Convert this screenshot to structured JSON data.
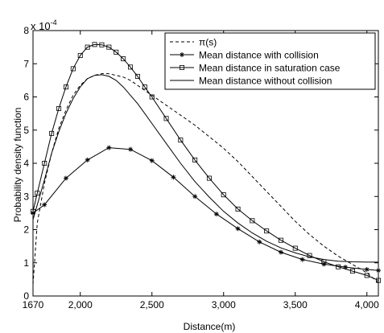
{
  "chart_data": {
    "type": "line",
    "xlabel": "Distance(m)",
    "ylabel": "Probability density function",
    "y_multiplier_label": "x 10",
    "y_multiplier_exponent": "-4",
    "xlim": [
      1670,
      4080
    ],
    "ylim": [
      0,
      8
    ],
    "x_ticks": [
      1670,
      2000,
      2500,
      3000,
      3500,
      4000
    ],
    "x_tick_labels": [
      "1670",
      "2,000",
      "2,500",
      "3,000",
      "3,500",
      "4,000"
    ],
    "y_ticks": [
      0,
      1,
      2,
      3,
      4,
      5,
      6,
      7,
      8
    ],
    "y_tick_labels": [
      "0",
      "1",
      "2",
      "3",
      "4",
      "5",
      "6",
      "7",
      "8"
    ],
    "grid": false,
    "legend_position": "top-right",
    "series": [
      {
        "name": "π(s)",
        "style": "dashed",
        "color": "#000000",
        "x": [
          1670,
          1700,
          1750,
          1800,
          1850,
          1900,
          1950,
          2000,
          2050,
          2100,
          2150,
          2200,
          2250,
          2300,
          2350,
          2400,
          2450,
          2500,
          2600,
          2700,
          2800,
          2900,
          3000,
          3100,
          3200,
          3300,
          3400,
          3500,
          3600,
          3700,
          3800,
          3900,
          4000,
          4080
        ],
        "y": [
          0.35,
          2.2,
          3.4,
          4.3,
          5.05,
          5.6,
          6.05,
          6.35,
          6.55,
          6.65,
          6.7,
          6.7,
          6.65,
          6.6,
          6.5,
          6.35,
          6.2,
          6.05,
          5.75,
          5.45,
          5.15,
          4.8,
          4.45,
          4.05,
          3.6,
          3.15,
          2.7,
          2.25,
          1.85,
          1.5,
          1.2,
          0.95,
          0.7,
          0.4
        ]
      },
      {
        "name": "Mean distance with collision",
        "style": "solid",
        "marker": "asterisk",
        "color": "#000000",
        "x": [
          1670,
          1750,
          1900,
          2050,
          2200,
          2350,
          2500,
          2650,
          2800,
          2950,
          3100,
          3250,
          3400,
          3550,
          3700,
          3850,
          4000,
          4080
        ],
        "y": [
          2.5,
          2.75,
          3.55,
          4.1,
          4.47,
          4.42,
          4.08,
          3.58,
          3.0,
          2.47,
          2.03,
          1.63,
          1.32,
          1.1,
          0.96,
          0.87,
          0.8,
          0.77
        ]
      },
      {
        "name": "Mean distance in saturation case",
        "style": "solid",
        "marker": "square",
        "color": "#000000",
        "x": [
          1670,
          1700,
          1750,
          1800,
          1850,
          1900,
          1950,
          2000,
          2050,
          2100,
          2150,
          2200,
          2250,
          2300,
          2350,
          2400,
          2450,
          2500,
          2600,
          2700,
          2800,
          2900,
          3000,
          3100,
          3200,
          3300,
          3400,
          3500,
          3600,
          3700,
          3800,
          3900,
          4000,
          4080
        ],
        "y": [
          2.55,
          3.1,
          4.0,
          4.9,
          5.65,
          6.3,
          6.85,
          7.25,
          7.5,
          7.58,
          7.57,
          7.5,
          7.35,
          7.15,
          6.9,
          6.62,
          6.3,
          6.0,
          5.35,
          4.7,
          4.1,
          3.55,
          3.05,
          2.62,
          2.27,
          1.96,
          1.68,
          1.44,
          1.22,
          1.03,
          0.88,
          0.75,
          0.62,
          0.47
        ]
      },
      {
        "name": "Mean distance without collision",
        "style": "solid",
        "color": "#000000",
        "x": [
          1670,
          1700,
          1750,
          1800,
          1850,
          1900,
          1950,
          2000,
          2050,
          2100,
          2150,
          2200,
          2250,
          2300,
          2350,
          2400,
          2450,
          2500,
          2600,
          2700,
          2800,
          2900,
          3000,
          3100,
          3200,
          3300,
          3400,
          3500,
          3600,
          3700,
          3800,
          3900,
          4000,
          4080
        ],
        "y": [
          2.3,
          2.75,
          3.5,
          4.3,
          4.95,
          5.5,
          5.95,
          6.3,
          6.55,
          6.65,
          6.67,
          6.62,
          6.5,
          6.3,
          6.05,
          5.8,
          5.5,
          5.2,
          4.6,
          4.0,
          3.45,
          2.98,
          2.55,
          2.2,
          1.9,
          1.65,
          1.45,
          1.3,
          1.18,
          1.1,
          1.05,
          1.03,
          1.02,
          1.02
        ]
      }
    ]
  }
}
